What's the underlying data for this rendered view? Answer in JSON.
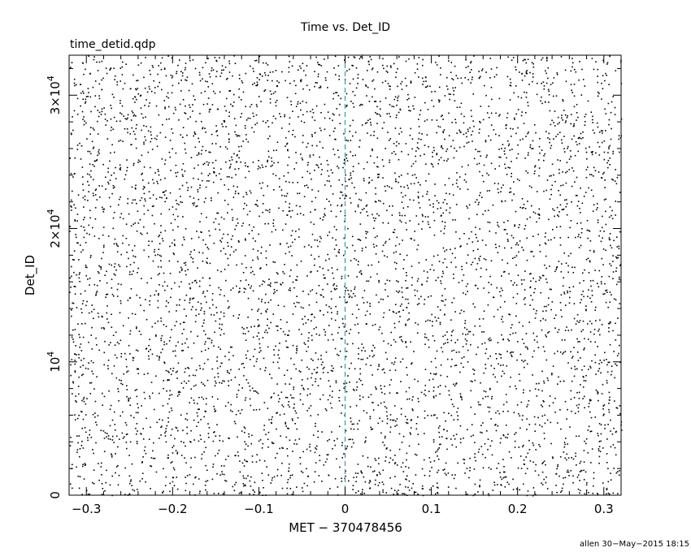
{
  "chart_data": {
    "type": "scatter",
    "title": "Time vs. Det_ID",
    "subtitle": "time_detid.qdp",
    "xlabel": "MET − 370478456",
    "ylabel": "Det_ID",
    "xlim": [
      -0.32,
      0.32
    ],
    "ylim": [
      0,
      33000
    ],
    "x_ticks": [
      {
        "value": -0.3,
        "label": "−0.3"
      },
      {
        "value": -0.2,
        "label": "−0.2"
      },
      {
        "value": -0.1,
        "label": "−0.1"
      },
      {
        "value": 0,
        "label": "0"
      },
      {
        "value": 0.1,
        "label": "0.1"
      },
      {
        "value": 0.2,
        "label": "0.2"
      },
      {
        "value": 0.3,
        "label": "0.3"
      }
    ],
    "y_ticks": [
      {
        "value": 0,
        "base": "0",
        "exp": ""
      },
      {
        "value": 10000,
        "base": "10",
        "exp": "4"
      },
      {
        "value": 20000,
        "base": "2×10",
        "exp": "4"
      },
      {
        "value": 30000,
        "base": "3×10",
        "exp": "4"
      }
    ],
    "reference_line": {
      "x": 0,
      "style": "dashed",
      "color": "#2aa0b0"
    },
    "point_color": "#000000",
    "point_count": 5500,
    "distribution": "uniform random scatter over full x and y range",
    "grid": false
  },
  "footer": "allen 30−May−2015 18:15"
}
